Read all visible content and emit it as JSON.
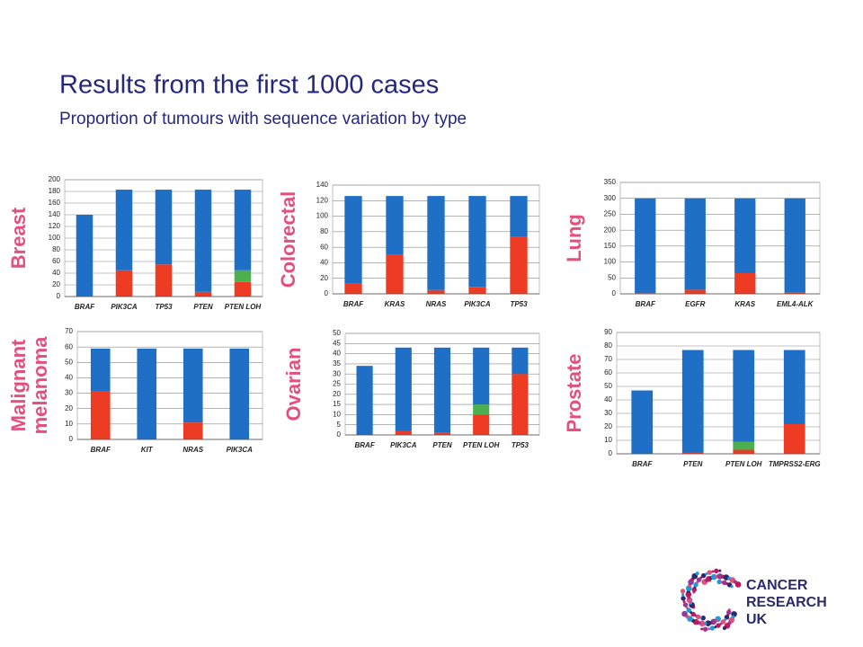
{
  "title": "Results from the first 1000 cases",
  "subtitle": "Proportion of tumours with sequence variation by type",
  "logo": [
    "CANCER",
    "RESEARCH",
    "UK"
  ],
  "chart_data": [
    {
      "type": "bar",
      "ylabel": [
        "Breast"
      ],
      "categories": [
        "BRAF",
        "PIK3CA",
        "TP53",
        "PTEN",
        "PTEN LOH"
      ],
      "series": [
        {
          "color": "#ee3b24",
          "values": [
            0,
            45,
            55,
            8,
            25
          ]
        },
        {
          "color": "#4caf50",
          "values": [
            0,
            0,
            0,
            0,
            20
          ]
        },
        {
          "color": "#1f6fc6",
          "values": [
            140,
            138,
            128,
            175,
            138
          ]
        }
      ],
      "ylim": [
        0,
        200
      ],
      "yticks": [
        0,
        20,
        40,
        60,
        80,
        100,
        120,
        140,
        160,
        180,
        200
      ],
      "grid": true
    },
    {
      "type": "bar",
      "ylabel": [
        "Colorectal"
      ],
      "categories": [
        "BRAF",
        "KRAS",
        "NRAS",
        "PIK3CA",
        "TP53"
      ],
      "series": [
        {
          "color": "#ee3b24",
          "values": [
            13,
            50,
            5,
            9,
            74
          ]
        },
        {
          "color": "#1f6fc6",
          "values": [
            113,
            76,
            121,
            117,
            52
          ]
        }
      ],
      "ylim": [
        0,
        140
      ],
      "yticks": [
        0,
        20,
        40,
        60,
        80,
        100,
        120,
        140
      ],
      "grid": true
    },
    {
      "type": "bar",
      "ylabel": [
        "Lung"
      ],
      "categories": [
        "BRAF",
        "EGFR",
        "KRAS",
        "EML4-ALK"
      ],
      "series": [
        {
          "color": "#ee3b24",
          "values": [
            2,
            13,
            65,
            4
          ]
        },
        {
          "color": "#1f6fc6",
          "values": [
            298,
            287,
            235,
            296
          ]
        }
      ],
      "ylim": [
        0,
        350
      ],
      "yticks": [
        0,
        50,
        100,
        150,
        200,
        250,
        300,
        350
      ],
      "grid": true
    },
    {
      "type": "bar",
      "ylabel": [
        "Malignant",
        "melanoma"
      ],
      "categories": [
        "BRAF",
        "KIT",
        "NRAS",
        "PIK3CA"
      ],
      "series": [
        {
          "color": "#ee3b24",
          "values": [
            31,
            0,
            11,
            0
          ]
        },
        {
          "color": "#1f6fc6",
          "values": [
            28,
            59,
            48,
            59
          ]
        }
      ],
      "ylim": [
        0,
        70
      ],
      "yticks": [
        0,
        10,
        20,
        30,
        40,
        50,
        60,
        70
      ],
      "grid": true
    },
    {
      "type": "bar",
      "ylabel": [
        "Ovarian"
      ],
      "categories": [
        "BRAF",
        "PIK3CA",
        "PTEN",
        "PTEN LOH",
        "TP53"
      ],
      "series": [
        {
          "color": "#ee3b24",
          "values": [
            0,
            2,
            1,
            10,
            30
          ]
        },
        {
          "color": "#4caf50",
          "values": [
            0,
            0,
            0,
            5,
            0
          ]
        },
        {
          "color": "#1f6fc6",
          "values": [
            34,
            41,
            42,
            28,
            13
          ]
        }
      ],
      "ylim": [
        0,
        50
      ],
      "yticks": [
        0,
        5,
        10,
        15,
        20,
        25,
        30,
        35,
        40,
        45,
        50
      ],
      "grid": true
    },
    {
      "type": "bar",
      "ylabel": [
        "Prostate"
      ],
      "categories": [
        "BRAF",
        "PTEN",
        "PTEN LOH",
        "TMPRSS2-ERG"
      ],
      "series": [
        {
          "color": "#ee3b24",
          "values": [
            0,
            1,
            3,
            22
          ]
        },
        {
          "color": "#4caf50",
          "values": [
            0,
            0,
            6,
            0
          ]
        },
        {
          "color": "#1f6fc6",
          "values": [
            47,
            76,
            68,
            55
          ]
        }
      ],
      "ylim": [
        0,
        90
      ],
      "yticks": [
        0,
        10,
        20,
        30,
        40,
        50,
        60,
        70,
        80,
        90
      ],
      "grid": true
    }
  ]
}
